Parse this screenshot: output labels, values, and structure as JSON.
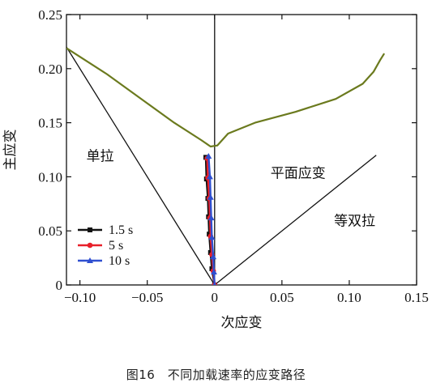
{
  "caption": "图16　不同加载速率的应变路径",
  "chart_data": {
    "type": "line",
    "xlabel": "次应变",
    "ylabel": "主应变",
    "xlim": [
      -0.11,
      0.15
    ],
    "ylim": [
      0,
      0.25
    ],
    "xticks": [
      -0.1,
      -0.05,
      0,
      0.05,
      0.1,
      0.15
    ],
    "xtick_labels": [
      "−0.10",
      "−0.05",
      "0",
      "0.05",
      "0.10",
      "0.15"
    ],
    "yticks": [
      0,
      0.05,
      0.1,
      0.15,
      0.2,
      0.25
    ],
    "ytick_labels": [
      "0",
      "0.05",
      "0.10",
      "0.15",
      "0.20",
      "0.25"
    ],
    "grid": false,
    "legend_position": "bottom-left",
    "region_labels": [
      {
        "text": "单拉",
        "x": -0.085,
        "y": 0.115
      },
      {
        "text": "平面应变",
        "x": 0.062,
        "y": 0.099
      },
      {
        "text": "等双拉",
        "x": 0.104,
        "y": 0.055
      }
    ],
    "reference_lines": [
      {
        "name": "uniaxial",
        "color": "#111111",
        "points": [
          [
            -0.11,
            0.22
          ],
          [
            0,
            0
          ]
        ]
      },
      {
        "name": "plane-strain",
        "color": "#111111",
        "points": [
          [
            0,
            0
          ],
          [
            0,
            0.25
          ]
        ]
      },
      {
        "name": "equibiaxial",
        "color": "#111111",
        "points": [
          [
            0,
            0
          ],
          [
            0.12,
            0.12
          ]
        ]
      }
    ],
    "flc": {
      "color": "#6b7a1e",
      "points": [
        [
          -0.11,
          0.219
        ],
        [
          -0.08,
          0.195
        ],
        [
          -0.05,
          0.168
        ],
        [
          -0.03,
          0.15
        ],
        [
          -0.01,
          0.134
        ],
        [
          -0.003,
          0.128
        ],
        [
          0.002,
          0.129
        ],
        [
          0.01,
          0.14
        ],
        [
          0.03,
          0.15
        ],
        [
          0.06,
          0.16
        ],
        [
          0.09,
          0.172
        ],
        [
          0.11,
          0.186
        ],
        [
          0.118,
          0.197
        ],
        [
          0.123,
          0.208
        ],
        [
          0.126,
          0.214
        ]
      ]
    },
    "series": [
      {
        "name": "1.5 s",
        "color": "#111111",
        "marker": "square",
        "points": [
          [
            -0.0065,
            0.118
          ],
          [
            -0.006,
            0.098
          ],
          [
            -0.005,
            0.08
          ],
          [
            -0.0045,
            0.063
          ],
          [
            -0.004,
            0.047
          ],
          [
            -0.003,
            0.03
          ],
          [
            -0.002,
            0.015
          ],
          [
            0,
            0
          ]
        ]
      },
      {
        "name": "5 s",
        "color": "#e8202a",
        "marker": "circle",
        "points": [
          [
            -0.0055,
            0.117
          ],
          [
            -0.005,
            0.099
          ],
          [
            -0.004,
            0.08
          ],
          [
            -0.0035,
            0.062
          ],
          [
            -0.003,
            0.045
          ],
          [
            -0.002,
            0.028
          ],
          [
            -0.001,
            0.013
          ],
          [
            0,
            0
          ]
        ]
      },
      {
        "name": "10 s",
        "color": "#2f4fd0",
        "marker": "triangle",
        "points": [
          [
            -0.0045,
            0.119
          ],
          [
            -0.0035,
            0.1
          ],
          [
            -0.003,
            0.081
          ],
          [
            -0.0025,
            0.062
          ],
          [
            -0.002,
            0.044
          ],
          [
            -0.001,
            0.026
          ],
          [
            -0.0005,
            0.012
          ],
          [
            0,
            0
          ]
        ]
      }
    ]
  }
}
